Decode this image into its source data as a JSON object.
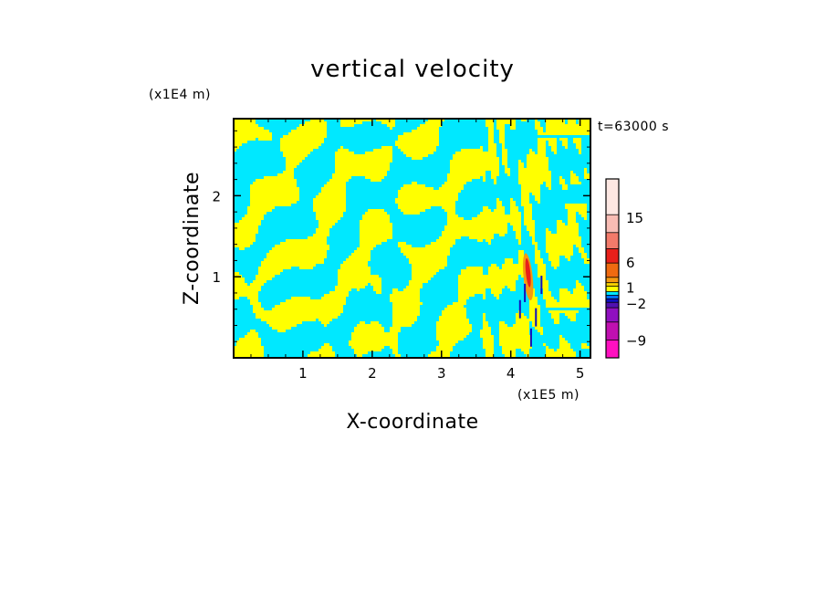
{
  "chart_data": {
    "type": "heatmap",
    "title": "vertical velocity",
    "xlabel": "X-coordinate",
    "ylabel": "Z-coordinate",
    "x_scale_note": "(x1E5 m)",
    "y_scale_note": "(x1E4 m)",
    "time_label": "t=63000 s",
    "xlim": [
      0,
      5.15
    ],
    "ylim": [
      0,
      2.95
    ],
    "x_ticks": [
      1,
      2,
      3,
      4,
      5
    ],
    "x_tick_labels": [
      "1",
      "2",
      "3",
      "4",
      "5"
    ],
    "y_ticks": [
      1,
      2
    ],
    "y_tick_labels": [
      "1",
      "2"
    ],
    "colorbar": {
      "labels": [
        {
          "value": 15,
          "text": "15"
        },
        {
          "value": 6,
          "text": "6"
        },
        {
          "value": 1,
          "text": "1"
        },
        {
          "value": -2,
          "text": "−2"
        },
        {
          "value": -9,
          "text": "−9"
        }
      ],
      "levels": [
        {
          "value": 20,
          "color": "#fde7e2"
        },
        {
          "value": 15,
          "color": "#f8bcb4"
        },
        {
          "value": 12,
          "color": "#f27a6a"
        },
        {
          "value": 9,
          "color": "#e8201a"
        },
        {
          "value": 6,
          "color": "#ef6a10"
        },
        {
          "value": 4,
          "color": "#f59a10"
        },
        {
          "value": 2,
          "color": "#f5d000"
        },
        {
          "value": 1,
          "color": "#ffff00"
        },
        {
          "value": 0,
          "color": "#00e8ff"
        },
        {
          "value": -1,
          "color": "#0070ff"
        },
        {
          "value": -2,
          "color": "#1010c0"
        },
        {
          "value": -4,
          "color": "#5010b0"
        },
        {
          "value": -6,
          "color": "#9010c0"
        },
        {
          "value": -8,
          "color": "#c010b0"
        },
        {
          "value": -10,
          "color": "#ff10c0"
        }
      ]
    },
    "field_description_colors": {
      "positive_weak": "#ffff00",
      "negative_weak": "#00e8ff",
      "strong_updraft": "#e8201a",
      "strong_downdraft": "#1010c0"
    }
  }
}
